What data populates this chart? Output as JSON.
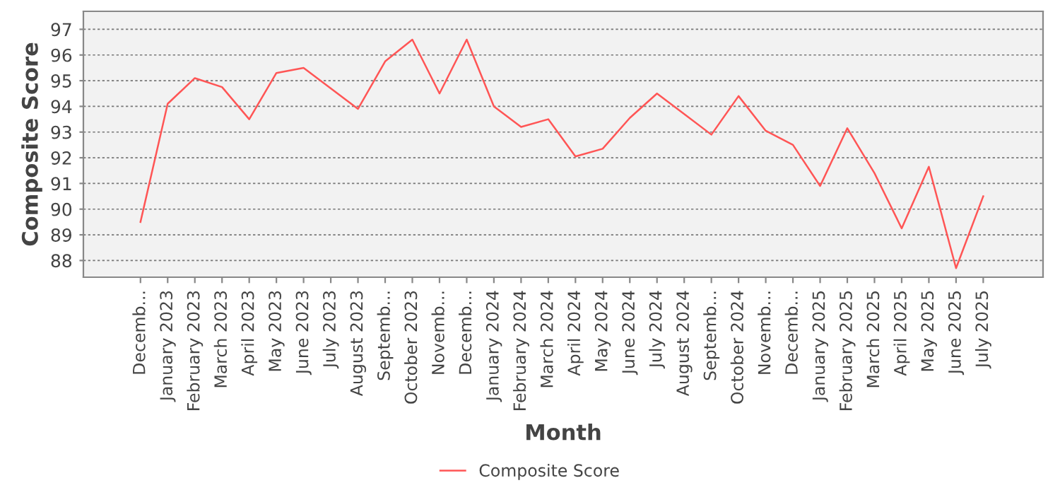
{
  "chart_data": {
    "type": "line",
    "xlabel": "Month",
    "ylabel": "Composite Score",
    "categories": [
      "Decemb...",
      "January 2023",
      "February 2023",
      "March 2023",
      "April 2023",
      "May 2023",
      "June 2023",
      "July 2023",
      "August 2023",
      "Septemb...",
      "October 2023",
      "Novemb...",
      "Decemb...",
      "January 2024",
      "February 2024",
      "March 2024",
      "April 2024",
      "May 2024",
      "June 2024",
      "July 2024",
      "August 2024",
      "Septemb...",
      "October 2024",
      "Novemb...",
      "Decemb...",
      "January 2025",
      "February 2025",
      "March 2025",
      "April 2025",
      "May 2025",
      "June 2025",
      "July 2025"
    ],
    "series": [
      {
        "name": "Composite Score",
        "color": "#ff5555",
        "values": [
          89.5,
          94.1,
          95.1,
          94.75,
          93.5,
          95.3,
          95.5,
          94.7,
          93.9,
          95.75,
          96.6,
          94.5,
          96.6,
          94.0,
          93.2,
          93.5,
          92.05,
          92.35,
          93.55,
          94.5,
          93.7,
          92.9,
          94.4,
          93.05,
          92.5,
          90.9,
          93.15,
          91.4,
          89.25,
          91.65,
          87.7,
          90.5
        ]
      }
    ],
    "ylim": [
      87.35,
      97.7
    ],
    "yticks": [
      88,
      89,
      90,
      91,
      92,
      93,
      94,
      95,
      96,
      97
    ],
    "grid": "y",
    "legend": "bottom",
    "marker": "none",
    "line_style": "solid"
  }
}
